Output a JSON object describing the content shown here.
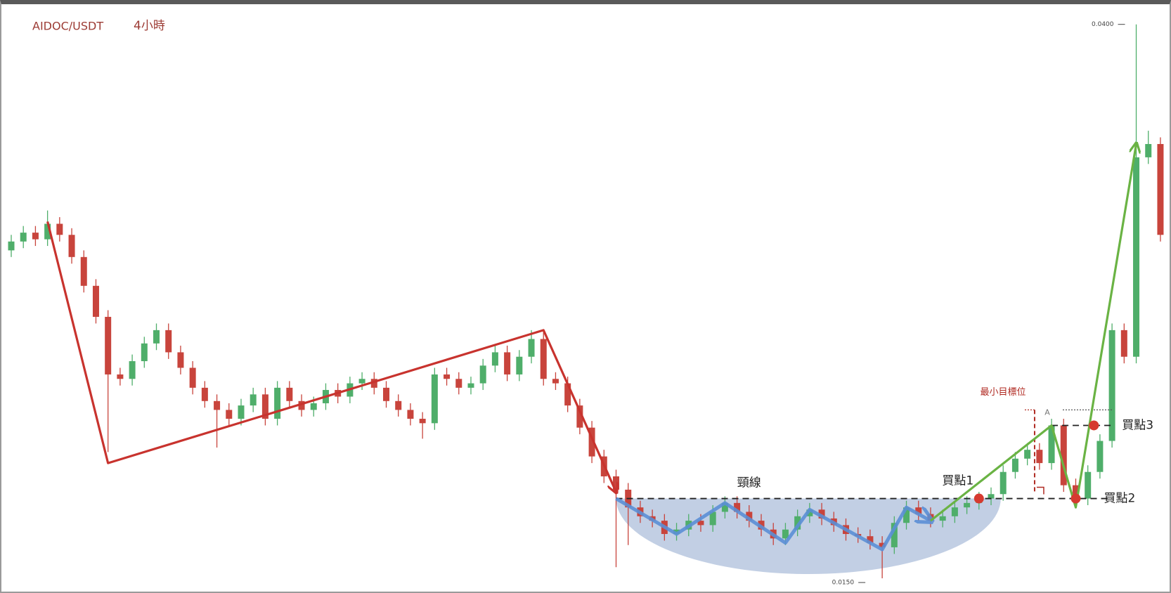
{
  "chart_data": {
    "type": "candlestick",
    "title": "AIDOC/USDT",
    "subtitle": "4小時",
    "ylim": [
      0.0144,
      0.0411
    ],
    "up_color": "#4fae6a",
    "down_color": "#c8443c",
    "open": [
      0.0298,
      0.0302,
      0.0306,
      0.0303,
      0.031,
      0.0305,
      0.0295,
      0.0282,
      0.0268,
      0.0242,
      0.024,
      0.0248,
      0.0256,
      0.0262,
      0.0252,
      0.0245,
      0.0236,
      0.023,
      0.0226,
      0.0222,
      0.0228,
      0.0233,
      0.0222,
      0.0236,
      0.023,
      0.0226,
      0.0229,
      0.0235,
      0.0232,
      0.0238,
      0.024,
      0.0236,
      0.023,
      0.0226,
      0.0222,
      0.022,
      0.0242,
      0.024,
      0.0236,
      0.0238,
      0.0246,
      0.0252,
      0.0242,
      0.025,
      0.0258,
      0.024,
      0.0238,
      0.0228,
      0.0218,
      0.0205,
      0.0196,
      0.019,
      0.0182,
      0.0178,
      0.0176,
      0.017,
      0.0172,
      0.0176,
      0.0174,
      0.018,
      0.0184,
      0.018,
      0.0176,
      0.0172,
      0.0168,
      0.0172,
      0.0178,
      0.0181,
      0.0177,
      0.0174,
      0.017,
      0.0169,
      0.0166,
      0.0164,
      0.0175,
      0.0182,
      0.0179,
      0.0176,
      0.0178,
      0.0182,
      0.0184,
      0.0186,
      0.0188,
      0.0198,
      0.0204,
      0.0208,
      0.0202,
      0.0219,
      0.0192,
      0.0186,
      0.0198,
      0.0212,
      0.0262,
      0.025,
      0.034,
      0.0346
    ],
    "high": [
      0.0305,
      0.0309,
      0.0309,
      0.0316,
      0.0313,
      0.0308,
      0.0298,
      0.0285,
      0.0271,
      0.0245,
      0.0251,
      0.0259,
      0.0265,
      0.0265,
      0.0255,
      0.0248,
      0.0239,
      0.0233,
      0.0229,
      0.0231,
      0.0236,
      0.0236,
      0.0239,
      0.0239,
      0.0233,
      0.0232,
      0.0238,
      0.0238,
      0.0241,
      0.0243,
      0.0243,
      0.0239,
      0.0233,
      0.0229,
      0.0225,
      0.0245,
      0.0245,
      0.0243,
      0.0241,
      0.0249,
      0.0255,
      0.0255,
      0.0253,
      0.0262,
      0.0262,
      0.0243,
      0.0241,
      0.0231,
      0.0221,
      0.0208,
      0.0199,
      0.0193,
      0.0185,
      0.0181,
      0.0179,
      0.0175,
      0.0179,
      0.0179,
      0.0183,
      0.0187,
      0.0187,
      0.0183,
      0.0179,
      0.0175,
      0.0175,
      0.0181,
      0.0184,
      0.0184,
      0.018,
      0.0177,
      0.0173,
      0.0172,
      0.0169,
      0.0178,
      0.0185,
      0.0185,
      0.0182,
      0.0181,
      0.0185,
      0.0187,
      0.0189,
      0.0191,
      0.0201,
      0.0207,
      0.0211,
      0.0211,
      0.0222,
      0.0222,
      0.0195,
      0.0201,
      0.0215,
      0.0265,
      0.0265,
      0.04,
      0.0352,
      0.0349
    ],
    "low": [
      0.0295,
      0.0299,
      0.03,
      0.03,
      0.0302,
      0.0292,
      0.0279,
      0.0265,
      0.0207,
      0.0237,
      0.0237,
      0.0245,
      0.0253,
      0.0249,
      0.0242,
      0.0233,
      0.0227,
      0.0209,
      0.0219,
      0.0219,
      0.0225,
      0.0219,
      0.0219,
      0.0227,
      0.0223,
      0.0223,
      0.0226,
      0.0229,
      0.0229,
      0.0235,
      0.0233,
      0.0227,
      0.0223,
      0.0219,
      0.0213,
      0.0217,
      0.0237,
      0.0233,
      0.0233,
      0.0235,
      0.0243,
      0.0239,
      0.0239,
      0.0247,
      0.0237,
      0.0235,
      0.0225,
      0.0215,
      0.0202,
      0.0193,
      0.0155,
      0.0165,
      0.0175,
      0.0173,
      0.0167,
      0.0167,
      0.0169,
      0.0171,
      0.0171,
      0.0177,
      0.0177,
      0.0173,
      0.0169,
      0.0165,
      0.0165,
      0.0169,
      0.0175,
      0.0174,
      0.0171,
      0.0167,
      0.0166,
      0.0163,
      0.015,
      0.0161,
      0.0172,
      0.0176,
      0.0173,
      0.0173,
      0.0175,
      0.0179,
      0.0181,
      0.0183,
      0.0185,
      0.0195,
      0.0201,
      0.0199,
      0.0199,
      0.0189,
      0.0183,
      0.0183,
      0.0195,
      0.0209,
      0.0247,
      0.0247,
      0.0337,
      0.0302
    ],
    "close": [
      0.0302,
      0.0306,
      0.0303,
      0.031,
      0.0305,
      0.0295,
      0.0282,
      0.0268,
      0.0242,
      0.024,
      0.0248,
      0.0256,
      0.0262,
      0.0252,
      0.0245,
      0.0236,
      0.023,
      0.0226,
      0.0222,
      0.0228,
      0.0233,
      0.0222,
      0.0236,
      0.023,
      0.0226,
      0.0229,
      0.0235,
      0.0232,
      0.0238,
      0.024,
      0.0236,
      0.023,
      0.0226,
      0.0222,
      0.022,
      0.0242,
      0.024,
      0.0236,
      0.0238,
      0.0246,
      0.0252,
      0.0242,
      0.025,
      0.0258,
      0.024,
      0.0238,
      0.0228,
      0.0218,
      0.0205,
      0.0196,
      0.019,
      0.0182,
      0.0178,
      0.0176,
      0.017,
      0.0172,
      0.0176,
      0.0174,
      0.018,
      0.0184,
      0.018,
      0.0176,
      0.0172,
      0.0168,
      0.0172,
      0.0178,
      0.0181,
      0.0177,
      0.0174,
      0.017,
      0.0169,
      0.0166,
      0.0164,
      0.0175,
      0.0182,
      0.0179,
      0.0176,
      0.0178,
      0.0182,
      0.0184,
      0.0186,
      0.0188,
      0.0198,
      0.0204,
      0.0208,
      0.0202,
      0.0219,
      0.0192,
      0.0186,
      0.0198,
      0.0212,
      0.0262,
      0.025,
      0.034,
      0.0346,
      0.0305
    ],
    "max_marker": {
      "x": 93,
      "value": 0.04,
      "label": "0.0400"
    },
    "min_marker": {
      "x": 72,
      "value": 0.015,
      "label": "0.0150"
    },
    "trend_lines": [
      {
        "color": "#c8332e",
        "x": [
          3,
          8,
          44,
          50
        ],
        "y": [
          0.0311,
          0.0202,
          0.0262,
          0.0189
        ]
      },
      {
        "color": "#5b8fd6",
        "x": [
          50,
          55,
          59,
          64,
          66,
          72,
          74,
          76
        ],
        "y": [
          0.0186,
          0.017,
          0.0184,
          0.0166,
          0.0181,
          0.0163,
          0.0182,
          0.0176
        ]
      },
      {
        "color": "#6ab344",
        "x": [
          76,
          86,
          88,
          93
        ],
        "y": [
          0.0176,
          0.0219,
          0.0182,
          0.0346
        ]
      }
    ],
    "neckline": {
      "label": "頸線",
      "value": 0.0186,
      "x": [
        50,
        91
      ]
    },
    "breakout_level": {
      "value": 0.0219,
      "x": [
        86,
        91
      ]
    },
    "target": {
      "label": "最小目標位",
      "marker": "A",
      "value": 0.0226,
      "x": 84.6
    },
    "buy_points": [
      {
        "label": "買點1",
        "x": 80,
        "value": 0.0186
      },
      {
        "label": "買點2",
        "x": 88,
        "value": 0.0186
      },
      {
        "label": "買點3",
        "x": 89.5,
        "value": 0.0219
      }
    ]
  }
}
